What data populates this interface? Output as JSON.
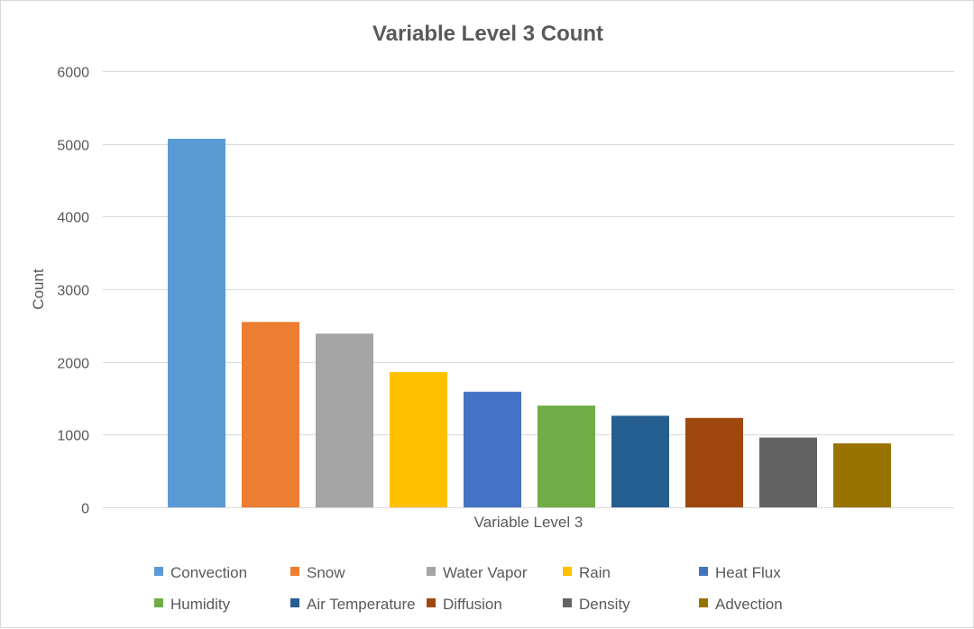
{
  "chart_data": {
    "type": "bar",
    "title": "Variable Level 3 Count",
    "xlabel": "Variable Level 3",
    "ylabel": "Count",
    "ylim": [
      0,
      6000
    ],
    "yticks": [
      0,
      1000,
      2000,
      3000,
      4000,
      5000,
      6000
    ],
    "grid": true,
    "legend_position": "bottom",
    "series": [
      {
        "name": "Convection",
        "value": 5070,
        "color": "#5b9bd5"
      },
      {
        "name": "Snow",
        "value": 2550,
        "color": "#ed7d31"
      },
      {
        "name": "Water Vapor",
        "value": 2390,
        "color": "#a5a5a5"
      },
      {
        "name": "Rain",
        "value": 1860,
        "color": "#ffc000"
      },
      {
        "name": "Heat Flux",
        "value": 1590,
        "color": "#4472c4"
      },
      {
        "name": "Humidity",
        "value": 1400,
        "color": "#70ad47"
      },
      {
        "name": "Air Temperature",
        "value": 1260,
        "color": "#255e91"
      },
      {
        "name": "Diffusion",
        "value": 1230,
        "color": "#9e480e"
      },
      {
        "name": "Density",
        "value": 960,
        "color": "#636363"
      },
      {
        "name": "Advection",
        "value": 880,
        "color": "#997300"
      }
    ]
  }
}
